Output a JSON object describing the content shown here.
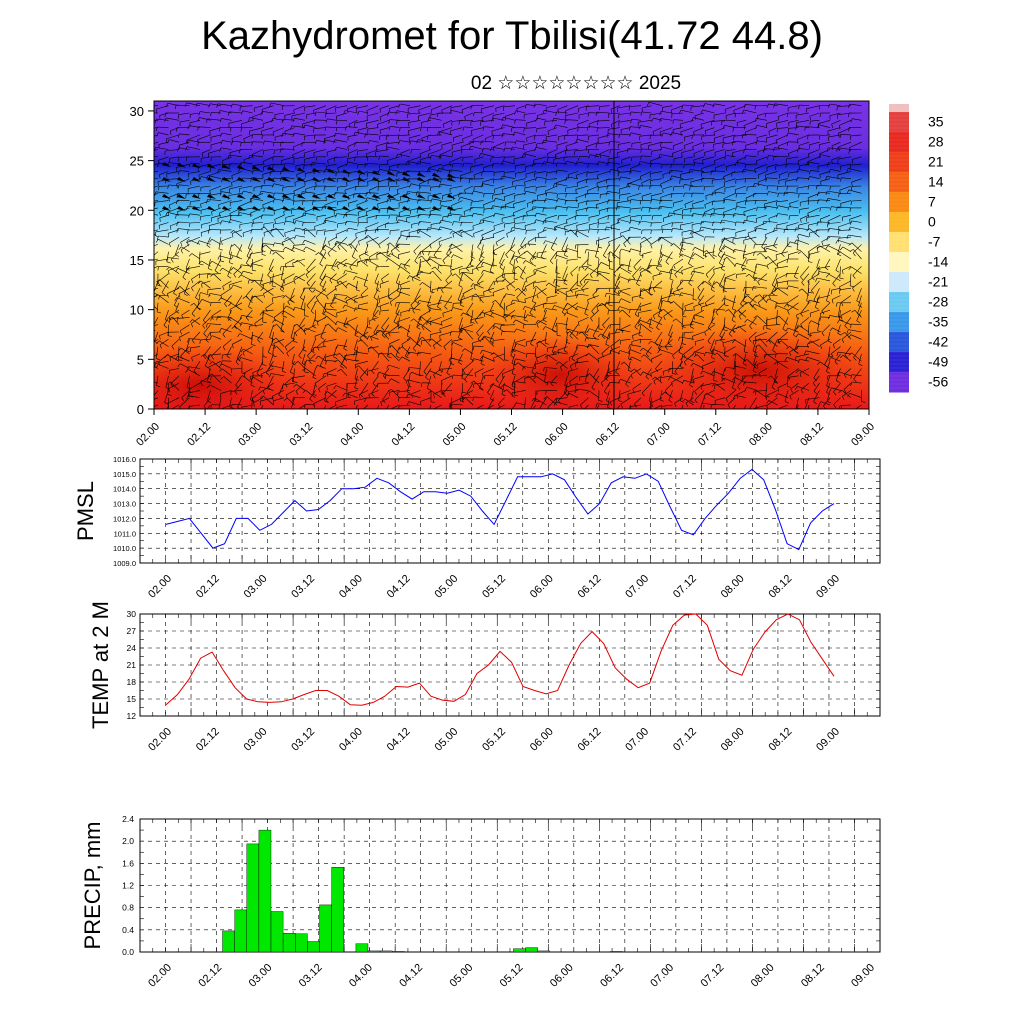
{
  "header": {
    "title": "Kazhydromet for Tbilisi(41.72 44.8)",
    "subtitle": "02 ☆☆☆☆☆☆☆☆ 2025"
  },
  "chart_data": [
    {
      "type": "heatmap",
      "title": "",
      "xlabel": "",
      "ylabel": "",
      "x_tick_labels": [
        "02.00",
        "02.12",
        "03.00",
        "03.12",
        "04.00",
        "04.12",
        "05.00",
        "05.12",
        "06.00",
        "06.12",
        "07.00",
        "07.12",
        "08.00",
        "08.12",
        "09.00"
      ],
      "ylim": [
        0,
        31
      ],
      "y_ticks": [
        0,
        5,
        10,
        15,
        20,
        25,
        30
      ],
      "colorbar_labels": [
        "35",
        "28",
        "21",
        "14",
        "7",
        "0",
        "-7",
        "-14",
        "-21",
        "-28",
        "-35",
        "-42",
        "-49",
        "-56"
      ],
      "colorbar_colors": [
        "#c8323c",
        "#e03a2a",
        "#f04a1a",
        "#f56a10",
        "#fa8c10",
        "#fcb020",
        "#ffd43a",
        "#fff080",
        "#d8f0ff",
        "#8cd4f5",
        "#3cacee",
        "#2a72dc",
        "#2a32d4",
        "#7a2ad0"
      ],
      "colorbar_colors_top": "#f0c0c0",
      "overlay": "wind barbs"
    },
    {
      "type": "line",
      "ylabel": "PMSL",
      "ylim": [
        1009,
        1016
      ],
      "y_tick_labels": [
        "1009.0",
        "1010.0",
        "1011.0",
        "1012.0",
        "1013.0",
        "1014.0",
        "1015.0",
        "1016.0"
      ],
      "x_tick_labels": [
        "02.00",
        "02.12",
        "03.00",
        "03.12",
        "04.00",
        "04.12",
        "05.00",
        "05.12",
        "06.00",
        "06.12",
        "07.00",
        "07.12",
        "08.00",
        "08.12",
        "09.00"
      ],
      "color": "#0000ff",
      "values": [
        1011.6,
        1011.8,
        1012.0,
        1011.0,
        1010.0,
        1010.3,
        1012.0,
        1012.0,
        1011.2,
        1011.6,
        1012.4,
        1013.2,
        1012.5,
        1012.6,
        1013.2,
        1014.0,
        1014.0,
        1014.1,
        1014.7,
        1014.4,
        1013.8,
        1013.3,
        1013.8,
        1013.8,
        1013.7,
        1013.9,
        1013.5,
        1012.5,
        1011.6,
        1013.2,
        1014.8,
        1014.8,
        1014.8,
        1015.0,
        1014.6,
        1013.4,
        1012.3,
        1013.0,
        1014.4,
        1014.8,
        1014.7,
        1015.0,
        1014.5,
        1012.8,
        1011.2,
        1010.9,
        1012.0,
        1012.9,
        1013.7,
        1014.7,
        1015.3,
        1014.6,
        1012.6,
        1010.3,
        1009.9,
        1011.7,
        1012.5,
        1013.0
      ]
    },
    {
      "type": "line",
      "ylabel": "TEMP at 2 M",
      "ylim": [
        12,
        30
      ],
      "y_tick_labels": [
        "12",
        "15",
        "18",
        "21",
        "24",
        "27",
        "30"
      ],
      "x_tick_labels": [
        "02.00",
        "02.12",
        "03.00",
        "03.12",
        "04.00",
        "04.12",
        "05.00",
        "05.12",
        "06.00",
        "06.12",
        "07.00",
        "07.12",
        "08.00",
        "08.12",
        "09.00"
      ],
      "color": "#e00000",
      "values": [
        14.0,
        15.8,
        18.5,
        22.2,
        23.3,
        20.0,
        17.0,
        15.0,
        14.5,
        14.4,
        14.5,
        15.0,
        15.8,
        16.5,
        16.5,
        15.5,
        14.0,
        13.9,
        14.4,
        15.5,
        17.2,
        17.1,
        17.8,
        15.5,
        14.8,
        14.6,
        15.8,
        19.5,
        21.0,
        23.4,
        21.5,
        17.2,
        16.5,
        15.9,
        16.5,
        21.0,
        24.8,
        26.9,
        24.8,
        20.5,
        18.5,
        17.0,
        17.8,
        23.5,
        28.0,
        29.8,
        30.2,
        28.0,
        22.0,
        20.0,
        19.2,
        23.8,
        26.8,
        29.0,
        30.0,
        29.0,
        25.0,
        22.0,
        19.0
      ]
    },
    {
      "type": "bar",
      "ylabel": "PRECIP, mm",
      "ylim": [
        0,
        2.4
      ],
      "y_tick_labels": [
        "0.0",
        "0.4",
        "0.8",
        "1.2",
        "1.6",
        "2.0",
        "2.4"
      ],
      "x_tick_labels": [
        "02.00",
        "02.12",
        "03.00",
        "03.12",
        "04.00",
        "04.12",
        "05.00",
        "05.12",
        "06.00",
        "06.12",
        "07.00",
        "07.12",
        "08.00",
        "08.12",
        "09.00"
      ],
      "color": "#00e800",
      "values": [
        0,
        0,
        0,
        0,
        0,
        0.38,
        0.76,
        1.95,
        2.2,
        0.73,
        0.34,
        0.33,
        0.19,
        0.85,
        1.53,
        0,
        0.15,
        0.02,
        0.02,
        0.01,
        0,
        0,
        0,
        0,
        0,
        0,
        0,
        0,
        0,
        0.06,
        0.08,
        0.02,
        0,
        0,
        0,
        0,
        0,
        0.01,
        0,
        0,
        0,
        0,
        0,
        0,
        0,
        0,
        0,
        0,
        0,
        0,
        0,
        0,
        0,
        0,
        0,
        0
      ]
    }
  ]
}
